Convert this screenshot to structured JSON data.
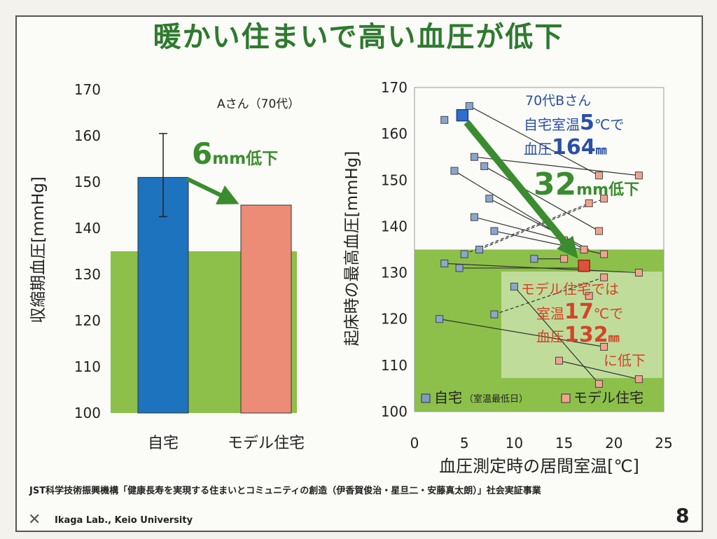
{
  "slide": {
    "title": "暖かい住まいで高い血圧が低下",
    "footer_credit": "JST科学技術振興機構「健康長寿を実現する住まいとコミュニティの創造（伊香賀俊治・星旦二・安藤真太朗）」社会実証事業",
    "footer_lab": "Ikaga Lab., Keio University",
    "page_number": "8"
  },
  "colors": {
    "title_green": "#2e7a2e",
    "band_green": "#8cc04a",
    "bar_home": "#1e73be",
    "bar_model": "#ec8c76",
    "arrow_green": "#3a8c2e",
    "callout_blue": "#2a4fa8",
    "callout_red": "#d2452a"
  },
  "chart_data": [
    {
      "type": "bar",
      "ylabel": "収縮期血圧[mmHg]",
      "ylim": [
        100,
        170
      ],
      "yticks": [
        100,
        110,
        120,
        130,
        140,
        150,
        160,
        170
      ],
      "categories": [
        "自宅",
        "モデル住宅"
      ],
      "values": [
        151,
        145
      ],
      "error_bar": {
        "category": "自宅",
        "low": 142.5,
        "high": 160.5
      },
      "reference_band": {
        "from": 100,
        "to": 135
      },
      "annotation_subject": "Aさん（70代）",
      "annotation_drop_value": "6",
      "annotation_drop_unit": "mm低下"
    },
    {
      "type": "scatter",
      "xlabel": "血圧測定時の居間室温[℃]",
      "ylabel": "起床時の最高血圧[mmHg]",
      "xlim": [
        0,
        25
      ],
      "ylim": [
        100,
        170
      ],
      "xticks": [
        0,
        5,
        10,
        15,
        20,
        25
      ],
      "yticks": [
        100,
        110,
        120,
        130,
        140,
        150,
        160,
        170
      ],
      "reference_band": {
        "from": 100,
        "to": 135
      },
      "legend": {
        "home": "自宅",
        "home_note": "（室温最低日）",
        "model": "モデル住宅",
        "position": "bottom"
      },
      "series": [
        {
          "name": "自宅",
          "points": [
            [
              3,
              163
            ],
            [
              5,
              164
            ],
            [
              5.5,
              166
            ],
            [
              6,
              155
            ],
            [
              7,
              153
            ],
            [
              7.5,
              146
            ],
            [
              4,
              152
            ],
            [
              6,
              142
            ],
            [
              8,
              139
            ],
            [
              5,
              134
            ],
            [
              6.5,
              135
            ],
            [
              3,
              132
            ],
            [
              4.5,
              131
            ],
            [
              12,
              133
            ],
            [
              8,
              121
            ],
            [
              2.5,
              120
            ],
            [
              10,
              127
            ]
          ]
        },
        {
          "name": "モデル住宅",
          "points": [
            [
              18.5,
              151
            ],
            [
              22.5,
              151
            ],
            [
              19,
              146
            ],
            [
              17.5,
              145
            ],
            [
              18.5,
              139
            ],
            [
              17,
              135
            ],
            [
              19,
              134
            ],
            [
              15,
              137
            ],
            [
              15,
              133
            ],
            [
              17,
              131
            ],
            [
              22.5,
              130
            ],
            [
              19,
              129
            ],
            [
              17.5,
              125
            ],
            [
              19,
              114
            ],
            [
              18.5,
              106
            ],
            [
              22.5,
              107
            ],
            [
              14.5,
              111
            ]
          ]
        }
      ],
      "pairs": [
        {
          "from": [
            5.5,
            166
          ],
          "to": [
            18.5,
            151
          ],
          "dashed": false
        },
        {
          "from": [
            6,
            155
          ],
          "to": [
            22.5,
            151
          ],
          "dashed": false
        },
        {
          "from": [
            7,
            153
          ],
          "to": [
            18.5,
            139
          ],
          "dashed": false
        },
        {
          "from": [
            7.5,
            146
          ],
          "to": [
            17.5,
            135
          ],
          "dashed": false
        },
        {
          "from": [
            4,
            152
          ],
          "to": [
            17,
            135
          ],
          "dashed": false
        },
        {
          "from": [
            6,
            142
          ],
          "to": [
            15,
            137
          ],
          "dashed": false
        },
        {
          "from": [
            8,
            139
          ],
          "to": [
            19,
            134
          ],
          "dashed": false
        },
        {
          "from": [
            5,
            134
          ],
          "to": [
            17.5,
            145
          ],
          "dashed": true
        },
        {
          "from": [
            6.5,
            135
          ],
          "to": [
            19,
            146
          ],
          "dashed": true
        },
        {
          "from": [
            3,
            132
          ],
          "to": [
            22.5,
            130
          ],
          "dashed": false
        },
        {
          "from": [
            4.5,
            131
          ],
          "to": [
            17,
            131
          ],
          "dashed": false
        },
        {
          "from": [
            12,
            133
          ],
          "to": [
            15,
            133
          ],
          "dashed": false
        },
        {
          "from": [
            8,
            121
          ],
          "to": [
            19,
            129
          ],
          "dashed": true
        },
        {
          "from": [
            2.5,
            120
          ],
          "to": [
            19,
            114
          ],
          "dashed": false
        },
        {
          "from": [
            10,
            127
          ],
          "to": [
            18.5,
            106
          ],
          "dashed": false
        },
        {
          "from": [
            14.5,
            111
          ],
          "to": [
            22.5,
            107
          ],
          "dashed": false
        }
      ],
      "highlight": {
        "from": [
          4.8,
          164
        ],
        "to": [
          17,
          131.5
        ]
      },
      "annotation_drop_value": "32",
      "annotation_drop_unit": "mm低下",
      "callout_b": {
        "line1": "70代Bさん",
        "line2a": "自宅室温",
        "line2b": "5",
        "line2c": "℃で",
        "line3a": "血圧",
        "line3b": "164",
        "line3c": "㎜"
      },
      "callout_model": {
        "line1": "モデル住宅では",
        "line2a": "室温",
        "line2b": "17",
        "line2c": "℃で",
        "line3a": "血圧",
        "line3b": "132",
        "line3c": "㎜",
        "line4": "に低下"
      }
    }
  ]
}
